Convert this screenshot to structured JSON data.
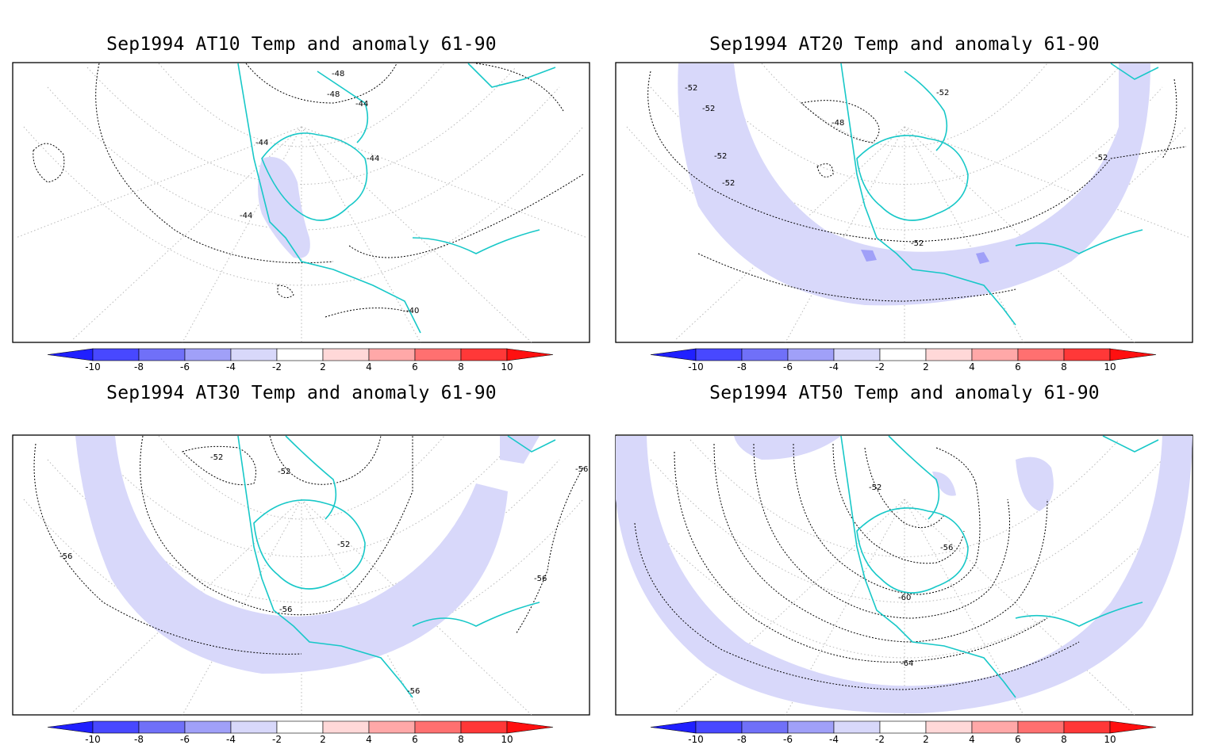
{
  "panels": [
    {
      "id": "at10",
      "title": "Sep1994 AT10 Temp and anomaly 61-90",
      "contour_labels": [
        "-48",
        "-48",
        "-44",
        "-44",
        "-44",
        "-44",
        "-40"
      ]
    },
    {
      "id": "at20",
      "title": "Sep1994 AT20 Temp and anomaly 61-90",
      "contour_labels": [
        "-52",
        "-52",
        "-52",
        "-52",
        "-48",
        "-52",
        "-52",
        "-52"
      ]
    },
    {
      "id": "at30",
      "title": "Sep1994 AT30 Temp and anomaly 61-90",
      "contour_labels": [
        "-52",
        "-52",
        "-52",
        "-56",
        "-56",
        "-56",
        "-56",
        "-56"
      ]
    },
    {
      "id": "at50",
      "title": "Sep1994 AT50 Temp and anomaly 61-90",
      "contour_labels": [
        "-52",
        "-56",
        "-60",
        "-64"
      ]
    }
  ],
  "colorbar": {
    "ticks": [
      "-10",
      "-8",
      "-6",
      "-4",
      "-2",
      "2",
      "4",
      "6",
      "8",
      "10"
    ],
    "colors": [
      "#2020ff",
      "#4848ff",
      "#7070f8",
      "#a0a0f8",
      "#d8d8fa",
      "#ffffff",
      "#ffd8d8",
      "#ffa8a8",
      "#ff7070",
      "#ff3838",
      "#ff1010"
    ]
  },
  "colors": {
    "coastline": "#18c8c8",
    "anomaly_fill": "#d8d8fa",
    "anomaly_strong": "#a0a0f8",
    "contour": "#000000",
    "graticule": "#b0b0b0"
  }
}
